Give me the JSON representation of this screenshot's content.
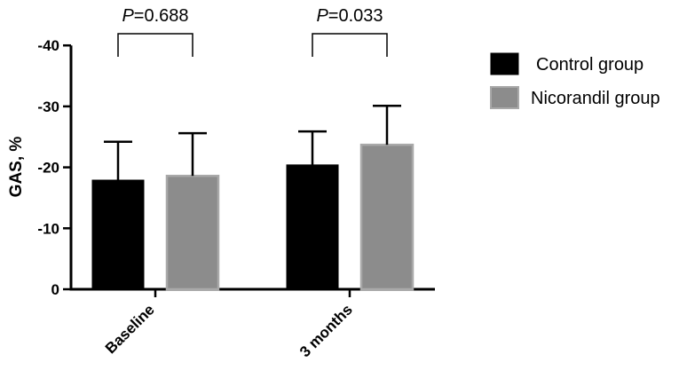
{
  "chart_data": {
    "type": "bar",
    "ylabel": "GAS, %",
    "xlabel": "",
    "categories": [
      "Baseline",
      "3 months"
    ],
    "yticks": [
      "0",
      "-10",
      "-20",
      "-30",
      "-40"
    ],
    "ylim": [
      0,
      -40
    ],
    "grid": false,
    "legend_position": "right",
    "series": [
      {
        "name": "Control group",
        "values": [
          -17.9,
          -20.4
        ],
        "errors": [
          6.3,
          5.5
        ],
        "color": "#000000"
      },
      {
        "name": "Nicorandil group",
        "values": [
          -18.6,
          -23.7
        ],
        "errors": [
          7.0,
          6.4
        ],
        "color": "#8c8c8c"
      }
    ],
    "comparisons": [
      {
        "category": "Baseline",
        "p_symbol": "P",
        "p_value": "=0.688"
      },
      {
        "category": "3 months",
        "p_symbol": "P",
        "p_value": "=0.033"
      }
    ]
  }
}
